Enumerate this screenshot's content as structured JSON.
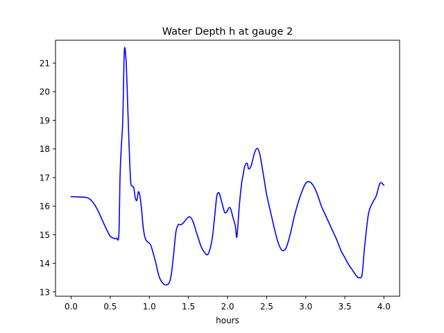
{
  "chart_data": {
    "type": "line",
    "title": "Water Depth h at gauge 2",
    "xlabel": "hours",
    "ylabel": "",
    "xlim": [
      -0.2,
      4.2
    ],
    "ylim": [
      12.85,
      21.8
    ],
    "xticks": [
      0.0,
      0.5,
      1.0,
      1.5,
      2.0,
      2.5,
      3.0,
      3.5,
      4.0
    ],
    "xtick_labels": [
      "0.0",
      "0.5",
      "1.0",
      "1.5",
      "2.0",
      "2.5",
      "3.0",
      "3.5",
      "4.0"
    ],
    "yticks": [
      13,
      14,
      15,
      16,
      17,
      18,
      19,
      20,
      21
    ],
    "ytick_labels": [
      "13",
      "14",
      "15",
      "16",
      "17",
      "18",
      "19",
      "20",
      "21"
    ],
    "grid": false,
    "legend": "none",
    "series": [
      {
        "color": "#0000ff",
        "x": [
          0.0,
          0.1,
          0.2,
          0.25,
          0.3,
          0.35,
          0.4,
          0.45,
          0.5,
          0.55,
          0.58,
          0.61,
          0.625,
          0.64,
          0.66,
          0.68,
          0.7,
          0.71,
          0.72,
          0.74,
          0.76,
          0.78,
          0.8,
          0.82,
          0.84,
          0.86,
          0.88,
          0.9,
          0.92,
          0.94,
          0.96,
          0.98,
          1.0,
          1.02,
          1.05,
          1.08,
          1.1,
          1.13,
          1.16,
          1.2,
          1.25,
          1.28,
          1.31,
          1.34,
          1.37,
          1.4,
          1.43,
          1.46,
          1.5,
          1.53,
          1.56,
          1.6,
          1.63,
          1.66,
          1.7,
          1.75,
          1.8,
          1.83,
          1.86,
          1.88,
          1.9,
          1.93,
          1.96,
          1.98,
          2.0,
          2.02,
          2.04,
          2.07,
          2.1,
          2.12,
          2.15,
          2.18,
          2.2,
          2.22,
          2.25,
          2.27,
          2.3,
          2.32,
          2.35,
          2.38,
          2.41,
          2.44,
          2.47,
          2.5,
          2.55,
          2.6,
          2.65,
          2.7,
          2.75,
          2.8,
          2.85,
          2.9,
          2.95,
          3.0,
          3.05,
          3.1,
          3.15,
          3.2,
          3.25,
          3.3,
          3.35,
          3.4,
          3.45,
          3.5,
          3.55,
          3.6,
          3.65,
          3.68,
          3.72,
          3.75,
          3.8,
          3.85,
          3.9,
          3.95,
          4.0
        ],
        "y": [
          16.33,
          16.32,
          16.3,
          16.22,
          16.05,
          15.8,
          15.5,
          15.2,
          14.95,
          14.87,
          14.88,
          15.0,
          17.0,
          18.0,
          19.0,
          21.4,
          21.2,
          20.6,
          19.8,
          18.2,
          16.9,
          16.7,
          16.65,
          16.3,
          16.2,
          16.5,
          16.35,
          15.9,
          15.3,
          14.95,
          14.8,
          14.75,
          14.7,
          14.62,
          14.35,
          14.05,
          13.8,
          13.5,
          13.35,
          13.25,
          13.3,
          13.6,
          14.3,
          15.1,
          15.35,
          15.35,
          15.4,
          15.5,
          15.62,
          15.6,
          15.45,
          15.1,
          14.85,
          14.6,
          14.4,
          14.32,
          14.8,
          15.5,
          16.3,
          16.47,
          16.4,
          16.1,
          15.8,
          15.77,
          15.85,
          15.95,
          15.9,
          15.6,
          15.3,
          14.93,
          16.0,
          16.8,
          17.1,
          17.4,
          17.5,
          17.3,
          17.4,
          17.6,
          17.9,
          18.02,
          17.85,
          17.4,
          16.9,
          16.4,
          15.8,
          15.2,
          14.7,
          14.45,
          14.55,
          15.0,
          15.6,
          16.1,
          16.5,
          16.8,
          16.85,
          16.7,
          16.4,
          16.0,
          15.7,
          15.4,
          15.1,
          14.8,
          14.45,
          14.2,
          13.95,
          13.75,
          13.55,
          13.5,
          13.6,
          14.5,
          15.7,
          16.1,
          16.35,
          16.8,
          16.73
        ]
      }
    ]
  }
}
